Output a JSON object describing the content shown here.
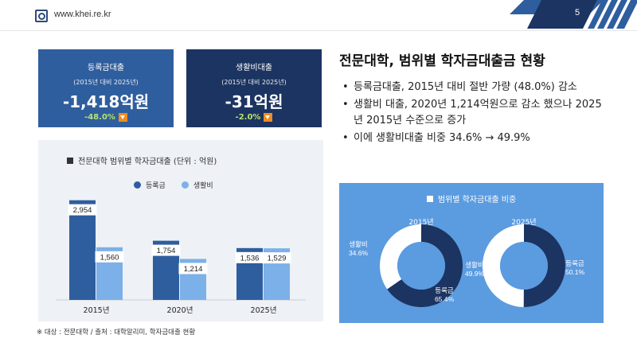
{
  "header": {
    "url": "www.khei.re.kr",
    "page_number": "5"
  },
  "kpis": [
    {
      "title": "등록금대출",
      "subtitle": "(2015년 대비 2025년)",
      "value": "-1,418억원",
      "change": "-48.0%"
    },
    {
      "title": "생활비대출",
      "subtitle": "(2015년 대비 2025년)",
      "value": "-31억원",
      "change": "-2.0%"
    }
  ],
  "colors": {
    "tuition": "#2f5e9e",
    "living": "#7cb0e8",
    "navy": "#1c3461",
    "accent_green": "#b6e36a",
    "accent_orange": "#f08c1e",
    "donut_panel": "#5b9be0"
  },
  "main": {
    "title": "전문대학, 범위별 학자금대출금 현황",
    "bullets": [
      "등록금대출, 2015년 대비 절반 가량 (48.0%) 감소",
      "생활비 대출, 2020년 1,214억원으로 감소 했으나 2025년 2015년 수준으로 증가",
      "이에 생활비대출 비중 34.6% → 49.9%"
    ]
  },
  "bar_chart": {
    "title": "전문대학 범위별 학자금대출 (단위 : 억원)",
    "legend": [
      "등록금",
      "생활비"
    ]
  },
  "donut_chart": {
    "title": "범위별 학자금대출 비중"
  },
  "footnote": "※ 대상 : 전문대학    / 출처 : 대학알리미, 학자금대출 현황",
  "chart_data": [
    {
      "type": "bar",
      "title": "전문대학 범위별 학자금대출 (단위 : 억원)",
      "categories": [
        "2015년",
        "2020년",
        "2025년"
      ],
      "series": [
        {
          "name": "등록금",
          "values": [
            2954,
            1754,
            1536
          ],
          "labels": [
            "2,954",
            "1,754",
            "1,536"
          ]
        },
        {
          "name": "생활비",
          "values": [
            1560,
            1214,
            1529
          ],
          "labels": [
            "1,560",
            "1,214",
            "1,529"
          ]
        }
      ],
      "ylim": [
        0,
        3300
      ],
      "grid": false,
      "legend": "top-center"
    },
    {
      "type": "pie",
      "title": "범위별 학자금대출 비중",
      "charts": [
        {
          "name": "2015년",
          "slices": [
            {
              "label": "등록금",
              "value": 65.4,
              "text": "65.4%"
            },
            {
              "label": "생활비",
              "value": 34.6,
              "text": "34.6%"
            }
          ]
        },
        {
          "name": "2025년",
          "slices": [
            {
              "label": "등록금",
              "value": 50.1,
              "text": "50.1%"
            },
            {
              "label": "생활비",
              "value": 49.9,
              "text": "49.9%"
            }
          ]
        }
      ]
    }
  ]
}
